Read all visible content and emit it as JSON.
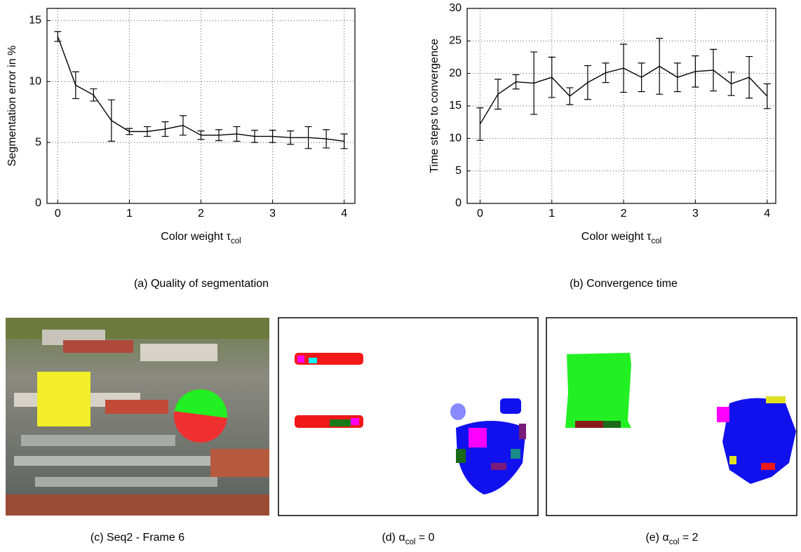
{
  "chart_data": [
    {
      "type": "line",
      "ylabel": "Segmentation error in %",
      "xlabel": {
        "text": "Color weight τ",
        "subscript": "col"
      },
      "x": [
        0,
        0.25,
        0.5,
        0.75,
        1,
        1.25,
        1.5,
        1.75,
        2,
        2.25,
        2.5,
        2.75,
        3,
        3.25,
        3.5,
        3.75,
        4
      ],
      "values": [
        13.7,
        9.7,
        8.9,
        6.8,
        5.9,
        5.9,
        6.1,
        6.4,
        5.6,
        5.6,
        5.7,
        5.5,
        5.5,
        5.4,
        5.4,
        5.3,
        5.1
      ],
      "errors": [
        0.4,
        1.1,
        0.5,
        1.7,
        0.25,
        0.4,
        0.6,
        0.8,
        0.35,
        0.45,
        0.6,
        0.5,
        0.5,
        0.55,
        0.9,
        0.75,
        0.6
      ],
      "color": "#000000",
      "xlim": [
        -0.15,
        4.15
      ],
      "xticks": [
        0,
        1,
        2,
        3,
        4
      ],
      "ylim": [
        0,
        16
      ],
      "yticks": [
        0,
        5,
        10,
        15
      ],
      "grid": true
    },
    {
      "type": "line",
      "ylabel": "Time steps to convergence",
      "xlabel": {
        "text": "Color weight τ",
        "subscript": "col"
      },
      "x": [
        0,
        0.25,
        0.5,
        0.75,
        1,
        1.25,
        1.5,
        1.75,
        2,
        2.25,
        2.5,
        2.75,
        3,
        3.25,
        3.5,
        3.75,
        4
      ],
      "values": [
        12.2,
        16.8,
        18.7,
        18.5,
        19.4,
        16.5,
        18.6,
        20.1,
        20.8,
        19.4,
        21.1,
        19.4,
        20.3,
        20.5,
        18.4,
        19.4,
        16.5
      ],
      "errors": [
        2.5,
        2.3,
        1.1,
        4.8,
        3.1,
        1.3,
        2.6,
        1.5,
        3.7,
        2.2,
        4.3,
        2.2,
        2.4,
        3.2,
        1.8,
        3.2,
        1.9
      ],
      "color": "#000000",
      "xlim": [
        -0.18,
        4.12
      ],
      "xticks": [
        0,
        1,
        2,
        3,
        4
      ],
      "ylim": [
        0,
        30
      ],
      "yticks": [
        0,
        5,
        10,
        15,
        20,
        25,
        30
      ],
      "grid": true
    }
  ],
  "captions": [
    {
      "prefix": "(a) Quality of segmentation"
    },
    {
      "prefix": "(b) Convergence time"
    },
    {
      "prefix": "(c) Seq2 - Frame 6"
    },
    {
      "prefix": "(d) α",
      "subscript": "col",
      "suffix": " = 0"
    },
    {
      "prefix": "(e) α",
      "subscript": "col",
      "suffix": " = 2"
    }
  ]
}
